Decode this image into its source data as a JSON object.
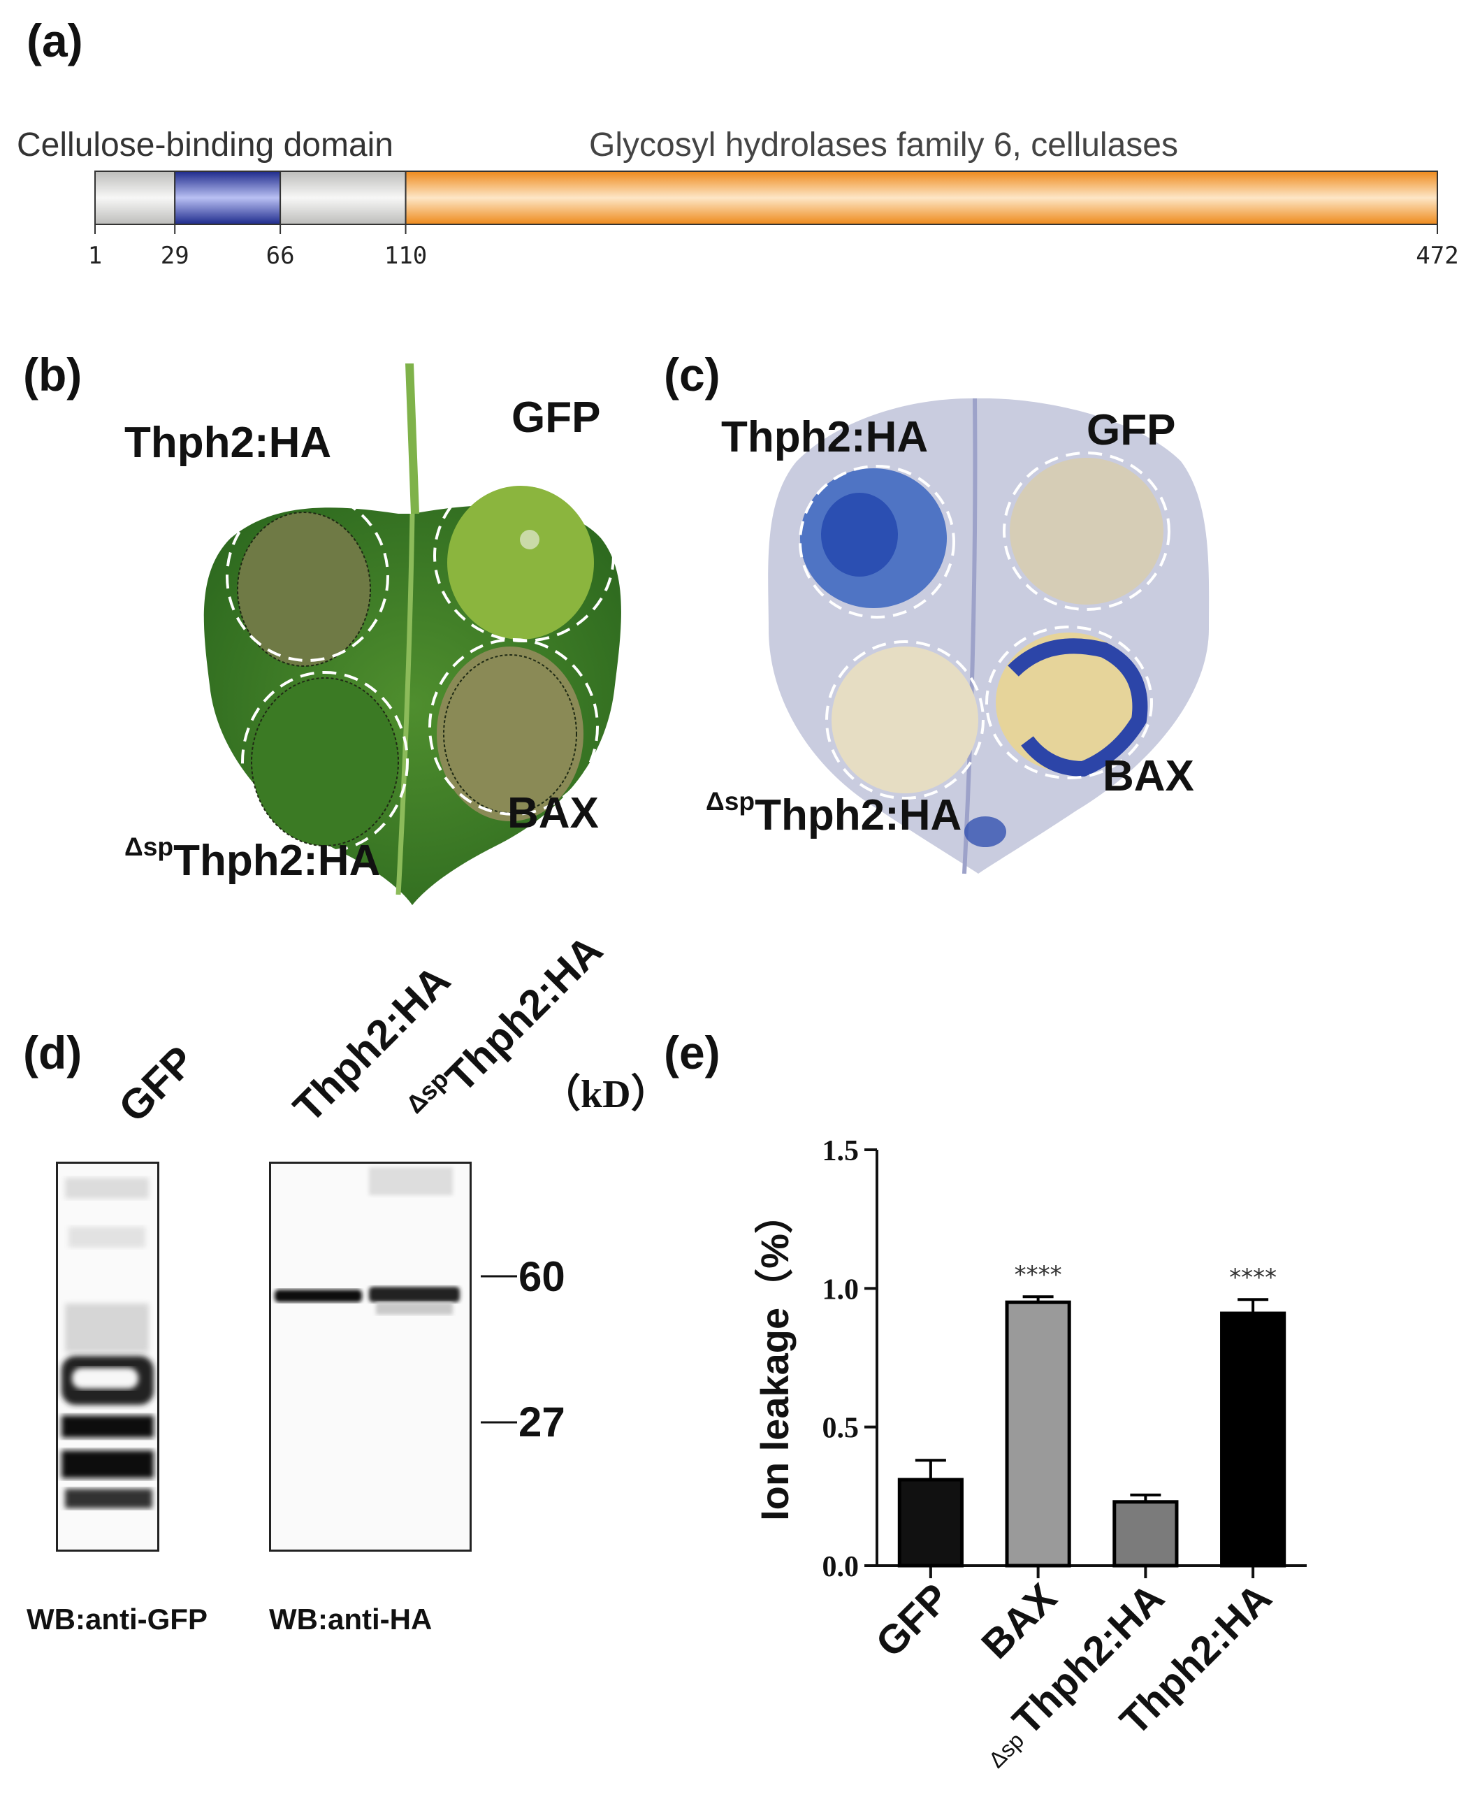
{
  "panels": {
    "a": "(a)",
    "b": "(b)",
    "c": "(c)",
    "d": "(d)",
    "e": "(e)"
  },
  "domain_map": {
    "label_left": "Cellulose-binding domain",
    "label_right": "Glycosyl hydrolases family 6, cellulases",
    "protein_length": 472,
    "segments": [
      {
        "start": 1,
        "end": 29,
        "color": "#e6e6e4"
      },
      {
        "start": 29,
        "end": 66,
        "color": "#3c47b0"
      },
      {
        "start": 66,
        "end": 110,
        "color": "#e6e6e4"
      },
      {
        "start": 110,
        "end": 472,
        "color": "#f29a3a"
      }
    ],
    "ticks": [
      1,
      29,
      66,
      110,
      472
    ],
    "tick_labels": [
      "1",
      "29",
      "66",
      "110",
      "472"
    ]
  },
  "leaf_b": {
    "label_thph2": "Thph2:HA",
    "label_gfp": "GFP",
    "label_bax": "BAX",
    "label_dsp_prefix": "Δsp",
    "label_dsp_main": "Thph2:HA"
  },
  "leaf_c": {
    "label_thph2": "Thph2:HA",
    "label_gfp": "GFP",
    "label_bax": "BAX",
    "label_dsp_prefix": "Δsp",
    "label_dsp_main": "Thph2:HA"
  },
  "western": {
    "lane_gfp": "GFP",
    "lane_thph2": "Thph2:HA",
    "lane_dsp_prefix": "Δsp",
    "lane_dsp_main": "Thph2:HA",
    "unit": "（kD）",
    "marker_60": "60",
    "marker_27": "27",
    "wb_gfp": "WB:anti-GFP",
    "wb_ha": "WB:anti-HA"
  },
  "chart_data": {
    "type": "bar",
    "categories": [
      "GFP",
      "BAX",
      "ΔspThph2:HA",
      "Thph2:HA"
    ],
    "category_labels": [
      {
        "prefix": "",
        "main": "GFP"
      },
      {
        "prefix": "",
        "main": "BAX"
      },
      {
        "prefix": "Δsp",
        "main": "Thph2:HA"
      },
      {
        "prefix": "",
        "main": "Thph2:HA"
      }
    ],
    "values": [
      0.31,
      0.95,
      0.23,
      0.91
    ],
    "errors": [
      0.07,
      0.02,
      0.025,
      0.05
    ],
    "bar_colors": [
      "#111111",
      "#9a9a9a",
      "#7b7b7b",
      "#000000"
    ],
    "significance": [
      "",
      "****",
      "",
      "****"
    ],
    "ylabel": "Ion leakage（%）",
    "ylim": [
      0,
      1.5
    ],
    "yticks": [
      0.0,
      0.5,
      1.0,
      1.5
    ],
    "ytick_labels": [
      "0.0",
      "0.5",
      "1.0",
      "1.5"
    ]
  }
}
